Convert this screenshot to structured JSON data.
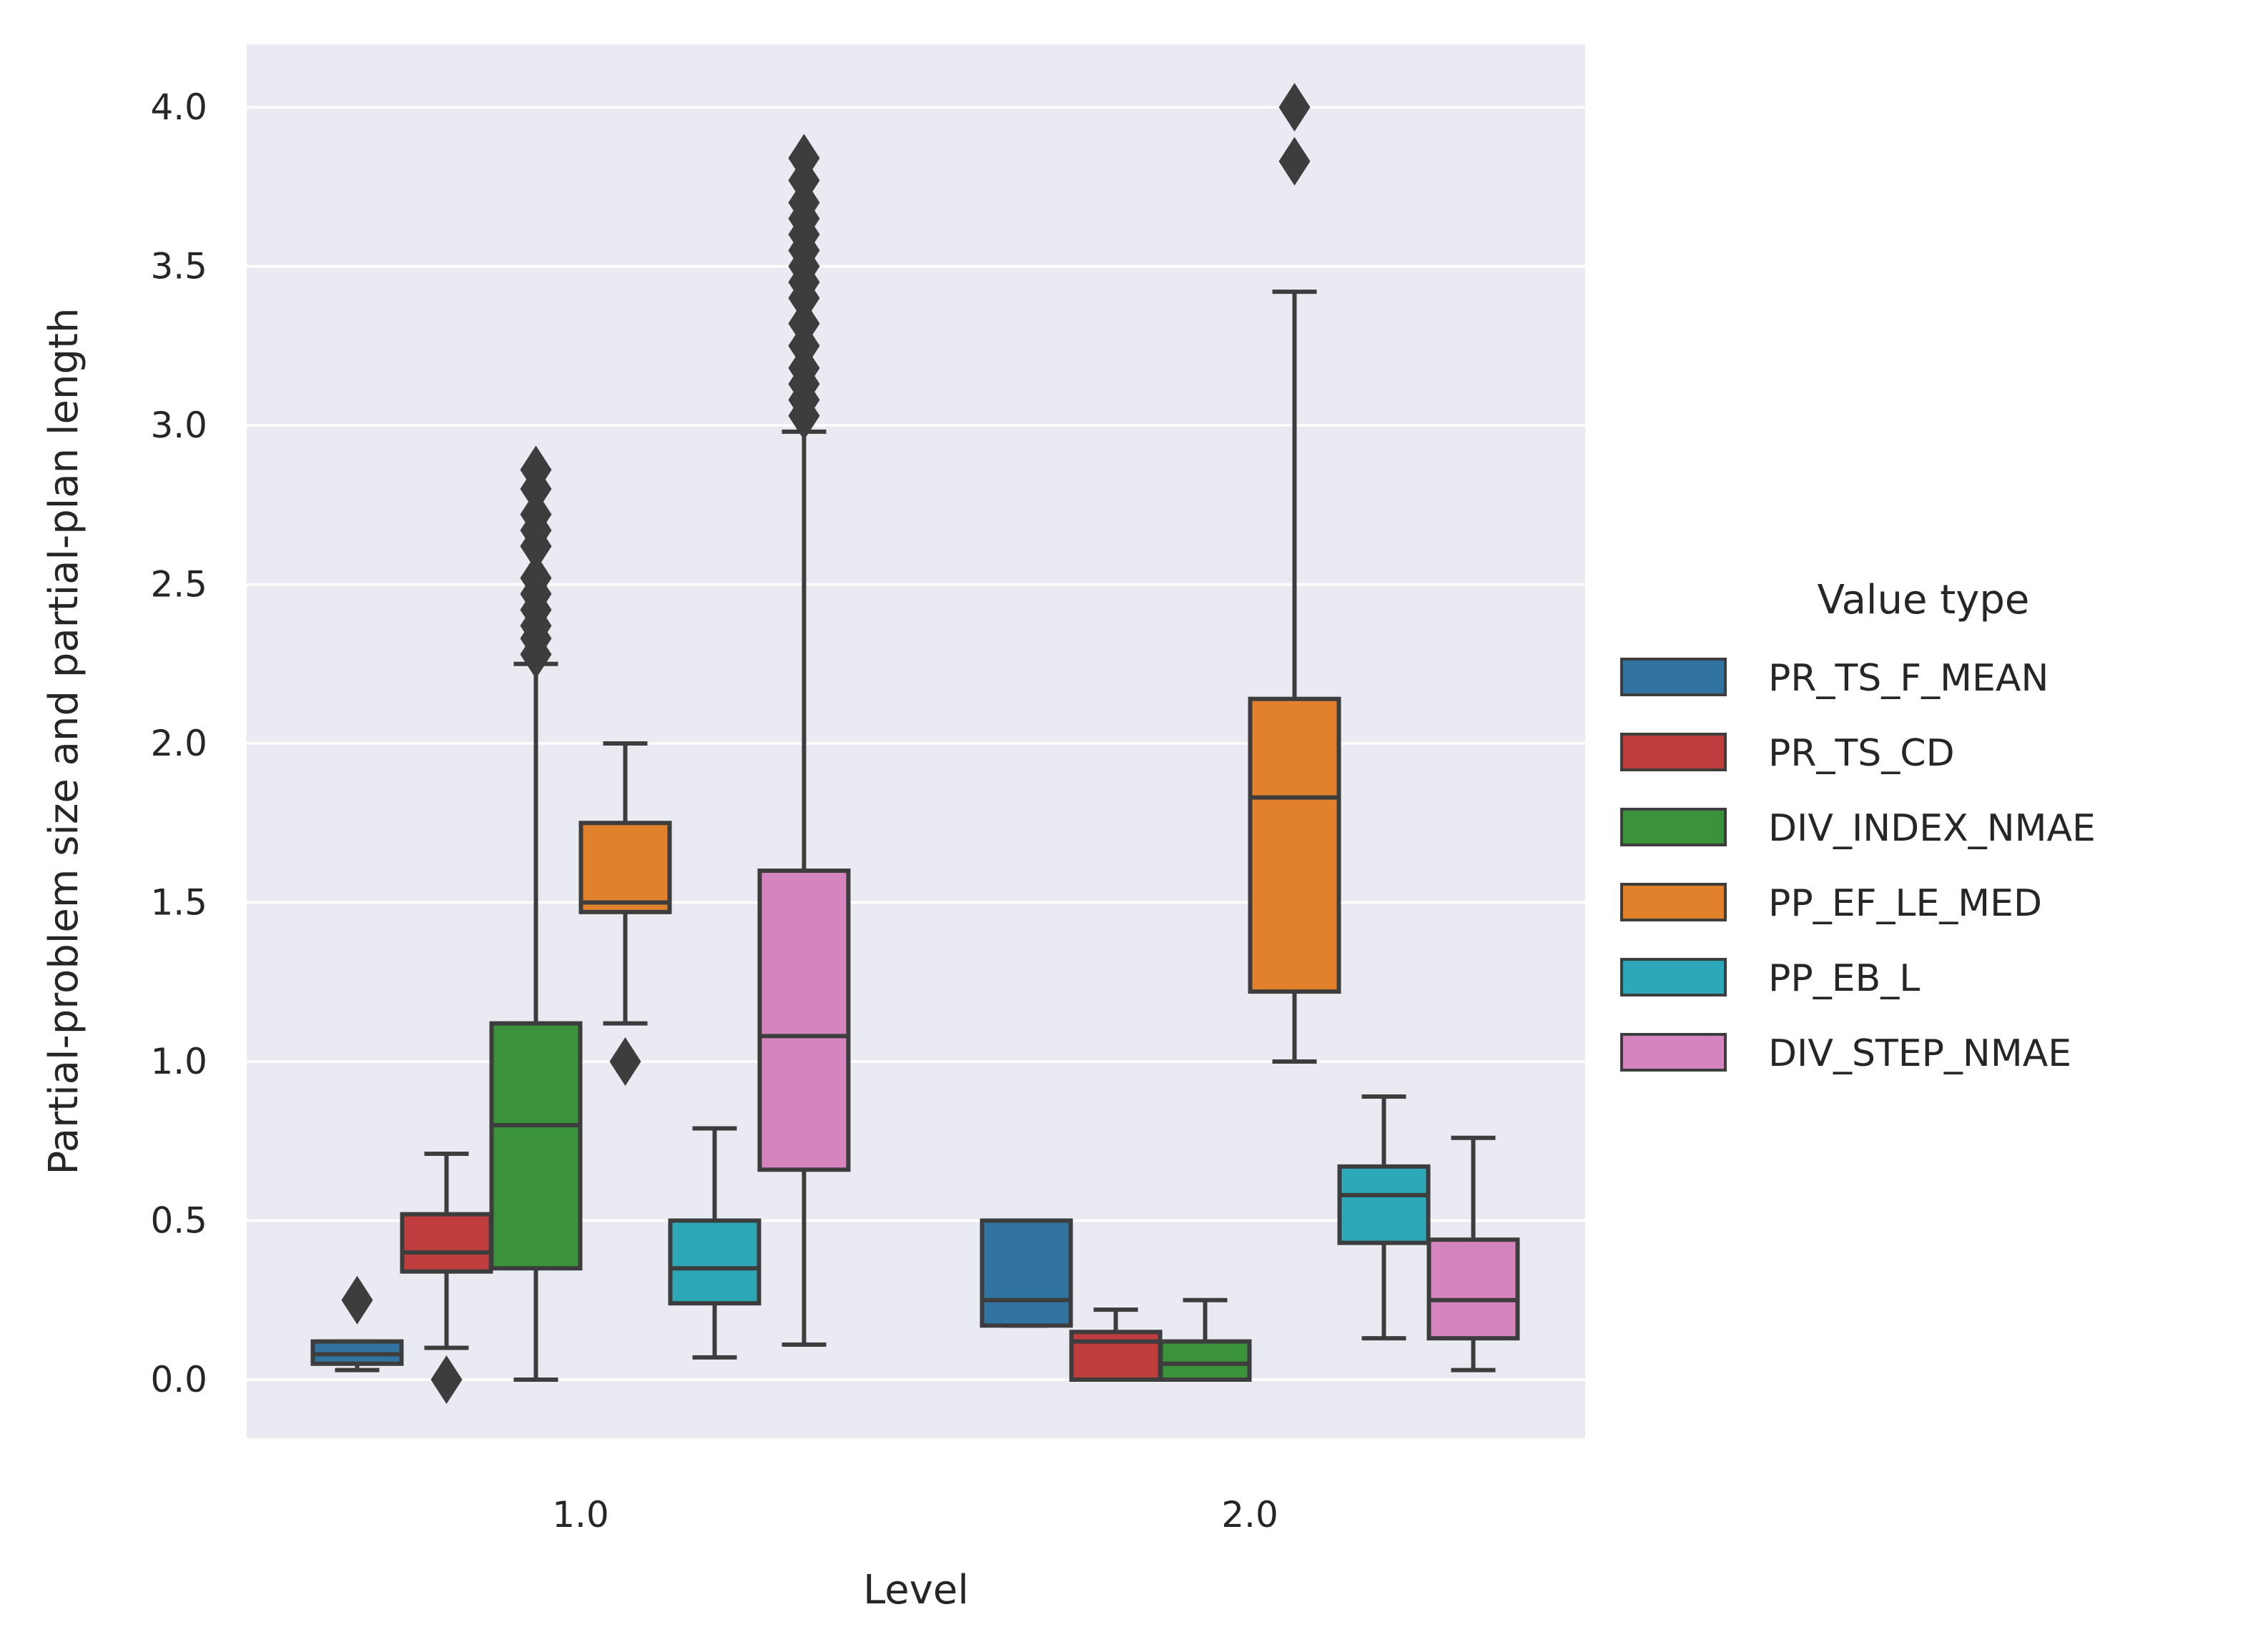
{
  "chart_data": {
    "type": "box",
    "xlabel": "Level",
    "ylabel": "Partial-problem size and partial-plan length",
    "ylim": [
      -0.2,
      4.2
    ],
    "yticks": [
      "0.0",
      "0.5",
      "1.0",
      "1.5",
      "2.0",
      "2.5",
      "3.0",
      "3.5",
      "4.0"
    ],
    "categories": [
      "1.0",
      "2.0"
    ],
    "grid": true,
    "legend": {
      "title": "Value type",
      "position": "right"
    },
    "series": [
      {
        "name": "PR_TS_F_MEAN",
        "color": "#3274a1",
        "boxes": [
          {
            "whislo": 0.03,
            "q1": 0.05,
            "med": 0.08,
            "q3": 0.12,
            "whishi": 0.12,
            "fliers": [
              0.25
            ]
          },
          {
            "whislo": 0.17,
            "q1": 0.17,
            "med": 0.25,
            "q3": 0.5,
            "whishi": 0.5,
            "fliers": []
          }
        ]
      },
      {
        "name": "PR_TS_CD",
        "color": "#c03d3e",
        "boxes": [
          {
            "whislo": 0.1,
            "q1": 0.34,
            "med": 0.4,
            "q3": 0.52,
            "whishi": 0.71,
            "fliers": [
              0.0
            ]
          },
          {
            "whislo": 0.0,
            "q1": 0.0,
            "med": 0.12,
            "q3": 0.15,
            "whishi": 0.22,
            "fliers": []
          }
        ]
      },
      {
        "name": "DIV_INDEX_NMAE",
        "color": "#3a923a",
        "boxes": [
          {
            "whislo": 0.0,
            "q1": 0.35,
            "med": 0.8,
            "q3": 1.12,
            "whishi": 2.25,
            "fliers": [
              2.28,
              2.33,
              2.37,
              2.42,
              2.47,
              2.52,
              2.62,
              2.67,
              2.72,
              2.8,
              2.86
            ]
          },
          {
            "whislo": 0.0,
            "q1": 0.0,
            "med": 0.05,
            "q3": 0.12,
            "whishi": 0.25,
            "fliers": []
          }
        ]
      },
      {
        "name": "PP_EF_LE_MED",
        "color": "#e1812c",
        "boxes": [
          {
            "whislo": 1.12,
            "q1": 1.47,
            "med": 1.5,
            "q3": 1.75,
            "whishi": 2.0,
            "fliers": [
              1.0
            ]
          },
          {
            "whislo": 1.0,
            "q1": 1.22,
            "med": 1.83,
            "q3": 2.14,
            "whishi": 3.42,
            "fliers": [
              3.83,
              4.0
            ]
          }
        ]
      },
      {
        "name": "PP_EB_L",
        "color": "#2da8b8",
        "boxes": [
          {
            "whislo": 0.07,
            "q1": 0.24,
            "med": 0.35,
            "q3": 0.5,
            "whishi": 0.79,
            "fliers": []
          },
          {
            "whislo": 0.13,
            "q1": 0.43,
            "med": 0.58,
            "q3": 0.67,
            "whishi": 0.89,
            "fliers": []
          }
        ]
      },
      {
        "name": "DIV_STEP_NMAE",
        "color": "#d684bd",
        "boxes": [
          {
            "whislo": 0.11,
            "q1": 0.66,
            "med": 1.08,
            "q3": 1.6,
            "whishi": 2.98,
            "fliers": [
              3.03,
              3.08,
              3.13,
              3.18,
              3.25,
              3.32,
              3.4,
              3.45,
              3.5,
              3.55,
              3.6,
              3.65,
              3.7,
              3.77,
              3.84
            ]
          },
          {
            "whislo": 0.03,
            "q1": 0.13,
            "med": 0.25,
            "q3": 0.44,
            "whishi": 0.76,
            "fliers": []
          }
        ]
      }
    ]
  }
}
